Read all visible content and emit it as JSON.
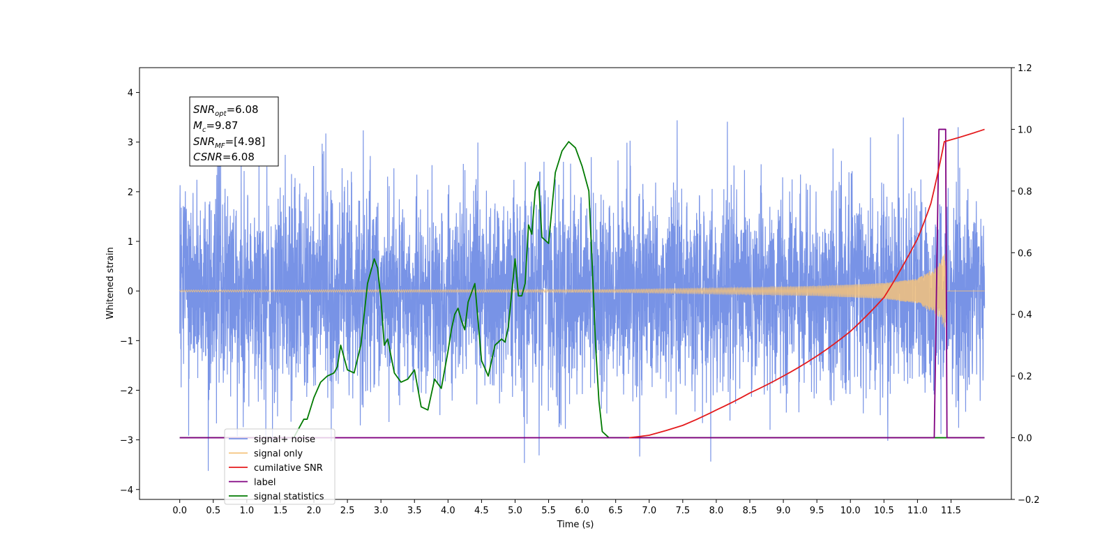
{
  "chart_data": {
    "type": "line",
    "title": "",
    "xlabel": "Time (s)",
    "ylabel": "Whitened strain",
    "xlim": [
      -0.6,
      12.4
    ],
    "ylim": [
      -4.2,
      4.5
    ],
    "y2lim": [
      -0.2,
      1.2
    ],
    "x_ticks": [
      "0.0",
      "0.5",
      "1.0",
      "1.5",
      "2.0",
      "2.5",
      "3.0",
      "3.5",
      "4.0",
      "4.5",
      "5.0",
      "5.5",
      "6.0",
      "6.5",
      "7.0",
      "7.5",
      "8.0",
      "8.5",
      "9.0",
      "9.5",
      "10.0",
      "10.5",
      "11.0",
      "11.5"
    ],
    "y_ticks": [
      "4",
      "3",
      "2",
      "1",
      "0",
      "−1",
      "−2",
      "−3",
      "−4"
    ],
    "y2_ticks": [
      "1.2",
      "1.0",
      "0.8",
      "0.6",
      "0.4",
      "0.2",
      "0.0",
      "−0.2"
    ],
    "grid": false,
    "legend_position": "lower-left",
    "annotations": {
      "snr_opt": "6.08",
      "mc": "9.87",
      "snr_mf": "[4.98]",
      "csnr": "6.08"
    },
    "series": [
      {
        "name": "signal+ noise",
        "color": "#7893e6",
        "axis": "left",
        "description": "whitened noise with std about 1.0 spanning 0 to 12 s, peaks near ±4"
      },
      {
        "name": "signal only",
        "color": "#f5c27a",
        "axis": "left",
        "x_range": [
          0,
          12
        ],
        "envelope": [
          [
            0.0,
            0.02
          ],
          [
            6.5,
            0.03
          ],
          [
            8.0,
            0.06
          ],
          [
            9.5,
            0.1
          ],
          [
            10.5,
            0.16
          ],
          [
            11.0,
            0.25
          ],
          [
            11.3,
            0.5
          ],
          [
            11.42,
            0.8
          ],
          [
            11.43,
            0.0
          ],
          [
            12.0,
            0.0
          ]
        ]
      },
      {
        "name": "cumilative SNR",
        "color": "#e41a1c",
        "axis": "right",
        "x": [
          6.7,
          7.0,
          7.5,
          8.0,
          8.5,
          9.0,
          9.5,
          10.0,
          10.5,
          11.0,
          11.2,
          11.4,
          12.0
        ],
        "y": [
          0.0,
          0.008,
          0.04,
          0.09,
          0.145,
          0.2,
          0.265,
          0.345,
          0.455,
          0.645,
          0.76,
          0.96,
          1.0
        ]
      },
      {
        "name": "label",
        "color": "#800080",
        "axis": "right",
        "x": [
          0,
          11.25,
          11.32,
          11.42,
          11.44,
          12.0
        ],
        "y": [
          0,
          0,
          1,
          1,
          0,
          0
        ]
      },
      {
        "name": "signal statistics",
        "color": "#007a00",
        "axis": "right",
        "x": [
          0,
          1.7,
          1.75,
          1.85,
          1.9,
          2.0,
          2.1,
          2.2,
          2.3,
          2.35,
          2.4,
          2.5,
          2.6,
          2.7,
          2.8,
          2.9,
          2.95,
          3.0,
          3.05,
          3.1,
          3.2,
          3.3,
          3.4,
          3.5,
          3.6,
          3.7,
          3.8,
          3.9,
          4.0,
          4.05,
          4.1,
          4.15,
          4.2,
          4.25,
          4.3,
          4.4,
          4.5,
          4.6,
          4.7,
          4.8,
          4.85,
          4.9,
          5.0,
          5.05,
          5.1,
          5.15,
          5.2,
          5.25,
          5.3,
          5.35,
          5.4,
          5.5,
          5.6,
          5.7,
          5.8,
          5.9,
          6.0,
          6.1,
          6.15,
          6.2,
          6.25,
          6.3,
          6.35,
          6.4,
          6.5,
          6.7,
          12.0
        ],
        "y": [
          0,
          0,
          0.02,
          0.06,
          0.06,
          0.13,
          0.18,
          0.2,
          0.21,
          0.23,
          0.3,
          0.22,
          0.21,
          0.3,
          0.5,
          0.58,
          0.55,
          0.45,
          0.3,
          0.32,
          0.21,
          0.18,
          0.19,
          0.22,
          0.1,
          0.09,
          0.19,
          0.16,
          0.28,
          0.35,
          0.4,
          0.42,
          0.38,
          0.35,
          0.44,
          0.5,
          0.25,
          0.2,
          0.3,
          0.32,
          0.31,
          0.36,
          0.58,
          0.46,
          0.46,
          0.5,
          0.69,
          0.66,
          0.8,
          0.83,
          0.65,
          0.63,
          0.86,
          0.93,
          0.96,
          0.94,
          0.88,
          0.8,
          0.56,
          0.3,
          0.12,
          0.02,
          0.01,
          0.0,
          0.0,
          0.0,
          0.0
        ]
      }
    ]
  }
}
